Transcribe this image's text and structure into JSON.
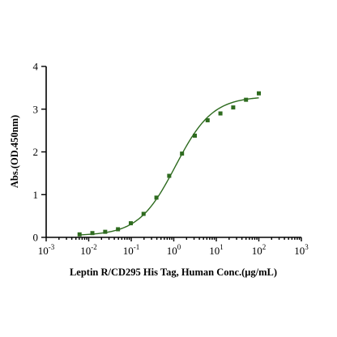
{
  "chart_data": {
    "type": "scatter",
    "title": "",
    "xlabel": "Leptin R/CD295 His Tag, Human Conc.(μg/mL)",
    "ylabel": "Abs.(OD.450nm)",
    "x_scale": "log",
    "xlim": [
      0.001,
      1000
    ],
    "ylim": [
      0,
      4
    ],
    "x_ticks": [
      {
        "value": 0.001,
        "base": "10",
        "exp": "-3"
      },
      {
        "value": 0.01,
        "base": "10",
        "exp": "-2"
      },
      {
        "value": 0.1,
        "base": "10",
        "exp": "-1"
      },
      {
        "value": 1,
        "base": "10",
        "exp": "0"
      },
      {
        "value": 10,
        "base": "10",
        "exp": "1"
      },
      {
        "value": 100,
        "base": "10",
        "exp": "2"
      },
      {
        "value": 1000,
        "base": "10",
        "exp": "3"
      }
    ],
    "y_ticks": [
      0,
      1,
      2,
      3,
      4
    ],
    "grid": false,
    "legend": "none",
    "series": [
      {
        "color": "#2e6b1f",
        "marker": "square",
        "x": [
          0.0061,
          0.0122,
          0.0244,
          0.0488,
          0.0977,
          0.195,
          0.391,
          0.781,
          1.5625,
          3.125,
          6.25,
          12.5,
          25,
          50,
          100
        ],
        "y": [
          0.07,
          0.1,
          0.13,
          0.19,
          0.33,
          0.55,
          0.93,
          1.44,
          1.96,
          2.38,
          2.74,
          2.9,
          3.04,
          3.22,
          3.37
        ]
      }
    ],
    "fit": {
      "type": "4PL",
      "bottom": 0.04,
      "top": 3.3,
      "ec50": 1.1,
      "hill": 1.0,
      "x_range": [
        0.0061,
        100
      ]
    }
  }
}
